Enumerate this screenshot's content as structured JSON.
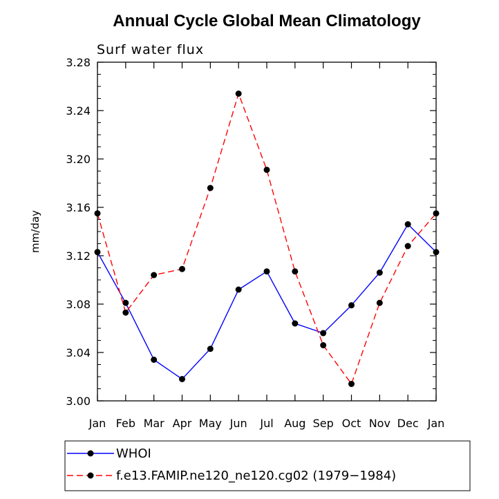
{
  "chart_data": {
    "type": "line",
    "title": "Annual Cycle Global Mean Climatology",
    "subtitle": "Surf water flux",
    "xlabel": "",
    "ylabel": "mm/day",
    "categories": [
      "Jan",
      "Feb",
      "Mar",
      "Apr",
      "May",
      "Jun",
      "Jul",
      "Aug",
      "Sep",
      "Oct",
      "Nov",
      "Dec",
      "Jan"
    ],
    "ylim": [
      3.0,
      3.28
    ],
    "yticks": [
      "3.00",
      "3.04",
      "3.08",
      "3.12",
      "3.16",
      "3.20",
      "3.24",
      "3.28"
    ],
    "series": [
      {
        "name": "WHOI",
        "color": "#0000ff",
        "dash": "solid",
        "values": [
          3.123,
          3.081,
          3.034,
          3.018,
          3.043,
          3.092,
          3.107,
          3.064,
          3.056,
          3.079,
          3.106,
          3.146,
          3.123
        ]
      },
      {
        "name": "f.e13.FAMIP.ne120_ne120.cg02 (1979−1984)",
        "color": "#ff0000",
        "dash": "dashed",
        "values": [
          3.155,
          3.073,
          3.104,
          3.109,
          3.176,
          3.254,
          3.191,
          3.107,
          3.046,
          3.014,
          3.081,
          3.128,
          3.155
        ]
      }
    ],
    "legend_position": "bottom-left"
  }
}
